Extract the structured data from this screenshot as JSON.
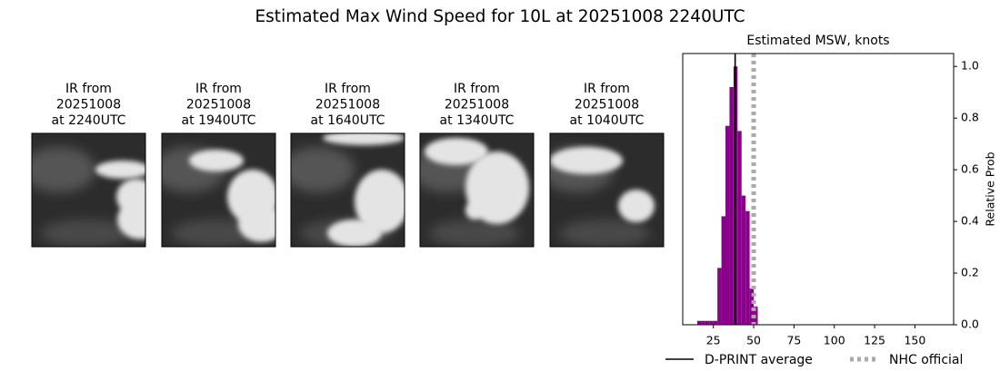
{
  "title": "Estimated Max Wind Speed for 10L at 20251008 2240UTC",
  "panels": [
    {
      "lines": [
        "IR from",
        "20251008",
        "at 2240UTC"
      ]
    },
    {
      "lines": [
        "IR from",
        "20251008",
        "at 1940UTC"
      ]
    },
    {
      "lines": [
        "IR from",
        "20251008",
        "at 1640UTC"
      ]
    },
    {
      "lines": [
        "IR from",
        "20251008",
        "at 1340UTC"
      ]
    },
    {
      "lines": [
        "IR from",
        "20251008",
        "at 1040UTC"
      ]
    }
  ],
  "chart_data": {
    "type": "histogram",
    "title": "Estimated MSW, knots",
    "y_label": "Relative Prob",
    "y_axis_side": "right",
    "bins": [
      15,
      17.5,
      20,
      22.5,
      25,
      27.5,
      30,
      32.5,
      35,
      37.5,
      40,
      42.5,
      45,
      47.5,
      50,
      52.5
    ],
    "values": [
      0.015,
      0.015,
      0.015,
      0.015,
      0.015,
      0.22,
      0.42,
      0.77,
      0.92,
      1.0,
      0.75,
      0.5,
      0.44,
      0.14,
      0.07
    ],
    "color": "#8b008b",
    "xlim": [
      6,
      174
    ],
    "ylim": [
      0,
      1.05
    ],
    "xticks": [
      25,
      50,
      75,
      100,
      125,
      150
    ],
    "yticks": [
      {
        "value": 0,
        "label": "0.0"
      },
      0.2,
      0.4,
      0.6,
      0.8,
      {
        "value": 1,
        "label": "1.0"
      }
    ],
    "lines": [
      {
        "name": "D-PRINT average",
        "value": 38.5,
        "color": "#000000",
        "style": "solid"
      },
      {
        "name": "NHC official",
        "value": 50,
        "color": "#aaaaaa",
        "style": "dotted"
      }
    ],
    "legend": "bottom"
  }
}
